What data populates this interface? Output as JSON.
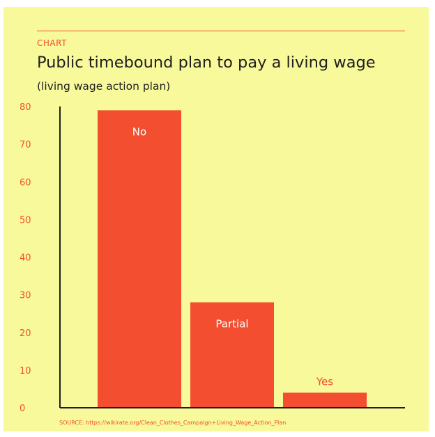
{
  "header": {
    "kicker": "CHART",
    "title": "Public timebound plan to pay a living wage",
    "subtitle": "(living wage action plan)"
  },
  "footer": {
    "source": "SOURCE: https://wikirate.org/Clean_Clothes_Campaign+Living_Wage_Action_Plan"
  },
  "colors": {
    "background": "#f8f99a",
    "bar": "#f24e2f",
    "axis": "#1e1e1e",
    "label_inside": "#ffffff",
    "label_outside": "#f24e2f"
  },
  "chart_data": {
    "type": "bar",
    "title": "Public timebound plan to pay a living wage",
    "subtitle": "(living wage action plan)",
    "categories": [
      "No",
      "Partial",
      "Yes"
    ],
    "values": [
      79,
      28,
      4
    ],
    "ylim": [
      0,
      80
    ],
    "yticks": [
      0,
      10,
      20,
      30,
      40,
      50,
      60,
      70,
      80
    ],
    "grid": false,
    "legend": "none"
  }
}
